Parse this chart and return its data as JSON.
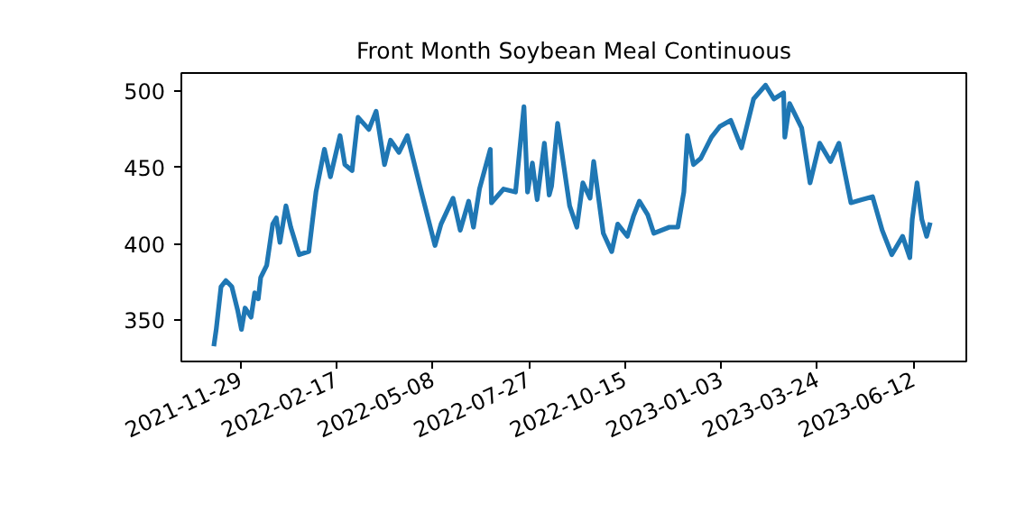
{
  "chart_data": {
    "type": "line",
    "title": "Front Month Soybean Meal Continuous",
    "x": [
      "2021-11-07",
      "2021-11-09",
      "2021-11-13",
      "2021-11-17",
      "2021-11-22",
      "2021-11-27",
      "2021-11-30",
      "2021-12-03",
      "2021-12-08",
      "2021-12-11",
      "2021-12-14",
      "2021-12-16",
      "2021-12-21",
      "2021-12-26",
      "2021-12-29",
      "2022-01-01",
      "2022-01-06",
      "2022-01-10",
      "2022-01-17",
      "2022-01-25",
      "2022-01-31",
      "2022-02-07",
      "2022-02-12",
      "2022-02-20",
      "2022-02-24",
      "2022-03-02",
      "2022-03-07",
      "2022-03-16",
      "2022-03-22",
      "2022-03-29",
      "2022-04-03",
      "2022-04-10",
      "2022-04-17",
      "2022-04-28",
      "2022-05-10",
      "2022-05-15",
      "2022-05-25",
      "2022-05-31",
      "2022-06-07",
      "2022-06-11",
      "2022-06-16",
      "2022-06-25",
      "2022-06-26",
      "2022-07-06",
      "2022-07-16",
      "2022-07-23",
      "2022-07-26",
      "2022-07-30",
      "2022-08-03",
      "2022-08-09",
      "2022-08-13",
      "2022-08-15",
      "2022-08-20",
      "2022-08-30",
      "2022-09-05",
      "2022-09-10",
      "2022-09-16",
      "2022-09-19",
      "2022-09-27",
      "2022-10-04",
      "2022-10-09",
      "2022-10-17",
      "2022-10-22",
      "2022-10-27",
      "2022-11-03",
      "2022-11-08",
      "2022-11-21",
      "2022-11-28",
      "2022-12-03",
      "2022-12-06",
      "2022-12-11",
      "2022-12-17",
      "2022-12-26",
      "2023-01-02",
      "2023-01-11",
      "2023-01-20",
      "2023-01-30",
      "2023-02-09",
      "2023-02-16",
      "2023-02-24",
      "2023-02-25",
      "2023-03-01",
      "2023-03-11",
      "2023-03-18",
      "2023-03-26",
      "2023-04-04",
      "2023-04-11",
      "2023-04-21",
      "2023-04-30",
      "2023-05-09",
      "2023-05-17",
      "2023-05-25",
      "2023-06-03",
      "2023-06-09",
      "2023-06-11",
      "2023-06-15",
      "2023-06-19",
      "2023-06-23",
      "2023-06-26"
    ],
    "series": [
      {
        "color": "#1f77b4",
        "values": [
          333,
          344,
          372,
          376,
          372,
          356,
          344,
          358,
          352,
          368,
          364,
          378,
          386,
          413,
          417,
          401,
          425,
          411,
          393,
          395,
          434,
          462,
          444,
          471,
          452,
          448,
          483,
          475,
          487,
          452,
          468,
          460,
          471,
          436,
          399,
          413,
          430,
          409,
          428,
          411,
          436,
          462,
          427,
          436,
          434,
          490,
          434,
          453,
          429,
          466,
          432,
          438,
          479,
          425,
          411,
          440,
          430,
          454,
          407,
          395,
          413,
          405,
          418,
          428,
          419,
          407,
          411,
          411,
          434,
          471,
          452,
          456,
          470,
          477,
          481,
          463,
          495,
          504,
          495,
          499,
          470,
          492,
          476,
          440,
          466,
          454,
          466,
          427,
          429,
          431,
          409,
          393,
          405,
          391,
          416,
          440,
          416,
          405,
          414
        ]
      }
    ],
    "xlim": [
      "2021-10-11",
      "2023-07-26"
    ],
    "xticks": [
      {
        "value": "2021-11-29",
        "label": "2021-11-29"
      },
      {
        "value": "2022-02-17",
        "label": "2022-02-17"
      },
      {
        "value": "2022-05-08",
        "label": "2022-05-08"
      },
      {
        "value": "2022-07-27",
        "label": "2022-07-27"
      },
      {
        "value": "2022-10-15",
        "label": "2022-10-15"
      },
      {
        "value": "2023-01-03",
        "label": "2023-01-03"
      },
      {
        "value": "2023-03-24",
        "label": "2023-03-24"
      },
      {
        "value": "2023-06-12",
        "label": "2023-06-12"
      }
    ],
    "ylim": [
      323,
      512
    ],
    "yticks": [
      350,
      400,
      450,
      500
    ],
    "grid": false,
    "marker": "none",
    "line_style": "solid"
  }
}
